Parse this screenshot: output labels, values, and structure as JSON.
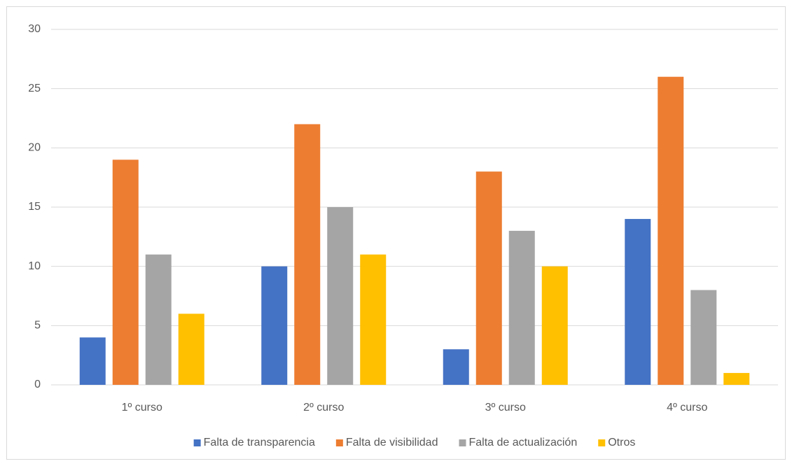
{
  "chart_data": {
    "type": "bar",
    "categories": [
      "1º curso",
      "2º curso",
      "3º curso",
      "4º curso"
    ],
    "series": [
      {
        "name": "Falta de transparencia",
        "color": "#4472c4",
        "values": [
          4,
          10,
          3,
          14
        ]
      },
      {
        "name": "Falta de visibilidad",
        "color": "#ed7d31",
        "values": [
          19,
          22,
          18,
          26
        ]
      },
      {
        "name": "Falta de actualización",
        "color": "#a5a5a5",
        "values": [
          11,
          15,
          13,
          8
        ]
      },
      {
        "name": "Otros",
        "color": "#ffc000",
        "values": [
          6,
          11,
          10,
          1
        ]
      }
    ],
    "ylim": [
      0,
      30
    ],
    "yticks": [
      0,
      5,
      10,
      15,
      20,
      25,
      30
    ],
    "grid": true,
    "legend": "bottom"
  }
}
